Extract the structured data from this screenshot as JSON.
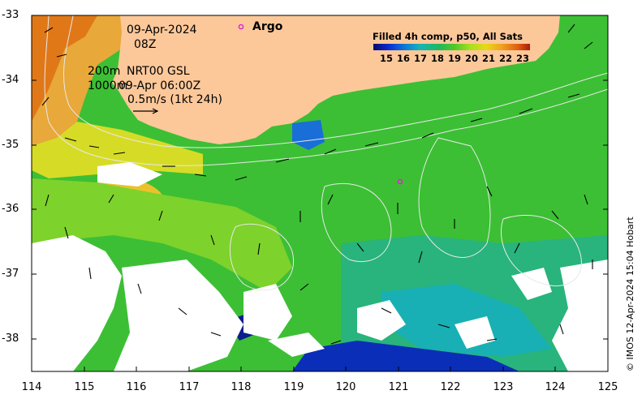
{
  "map": {
    "date": "09-Apr-2024",
    "time": "08Z",
    "depth_200": "200m",
    "depth_1000": "1000m",
    "product": "NRT00 GSL",
    "product_time": "09-Apr 06:00Z",
    "scale_label": "0.5m/s (1kt 24h)",
    "argo_label": "Argo",
    "credit": "© IMOS 12-Apr-2024 15:04 Hobart",
    "lon_ticks": [
      "114",
      "115",
      "116",
      "117",
      "118",
      "119",
      "120",
      "121",
      "122",
      "123",
      "124",
      "125"
    ],
    "lat_ticks": [
      "-33",
      "-34",
      "-35",
      "-36",
      "-37",
      "-38"
    ],
    "lon_range": [
      114,
      125
    ],
    "lat_range": [
      -38.5,
      -33
    ],
    "argo_floats": [
      {
        "lon": 118.1,
        "lat": -33.2,
        "shown_in": "legend"
      },
      {
        "lon": 121.0,
        "lat": -35.55,
        "shown_in": "map"
      }
    ]
  },
  "colorbar": {
    "title": "Filled 4h comp, p50, All Sats",
    "ticks": [
      "15",
      "16",
      "17",
      "18",
      "19",
      "20",
      "21",
      "22",
      "23"
    ],
    "range": [
      14.5,
      23.5
    ]
  },
  "colors": {
    "land": "#fcc89a",
    "argo": "#e020d0",
    "palette": [
      "#06086e",
      "#0a2ed2",
      "#0d78d8",
      "#14b4b4",
      "#20b85c",
      "#50c828",
      "#a8e020",
      "#e8d818",
      "#f0a020",
      "#e06010",
      "#a81c0c"
    ]
  }
}
